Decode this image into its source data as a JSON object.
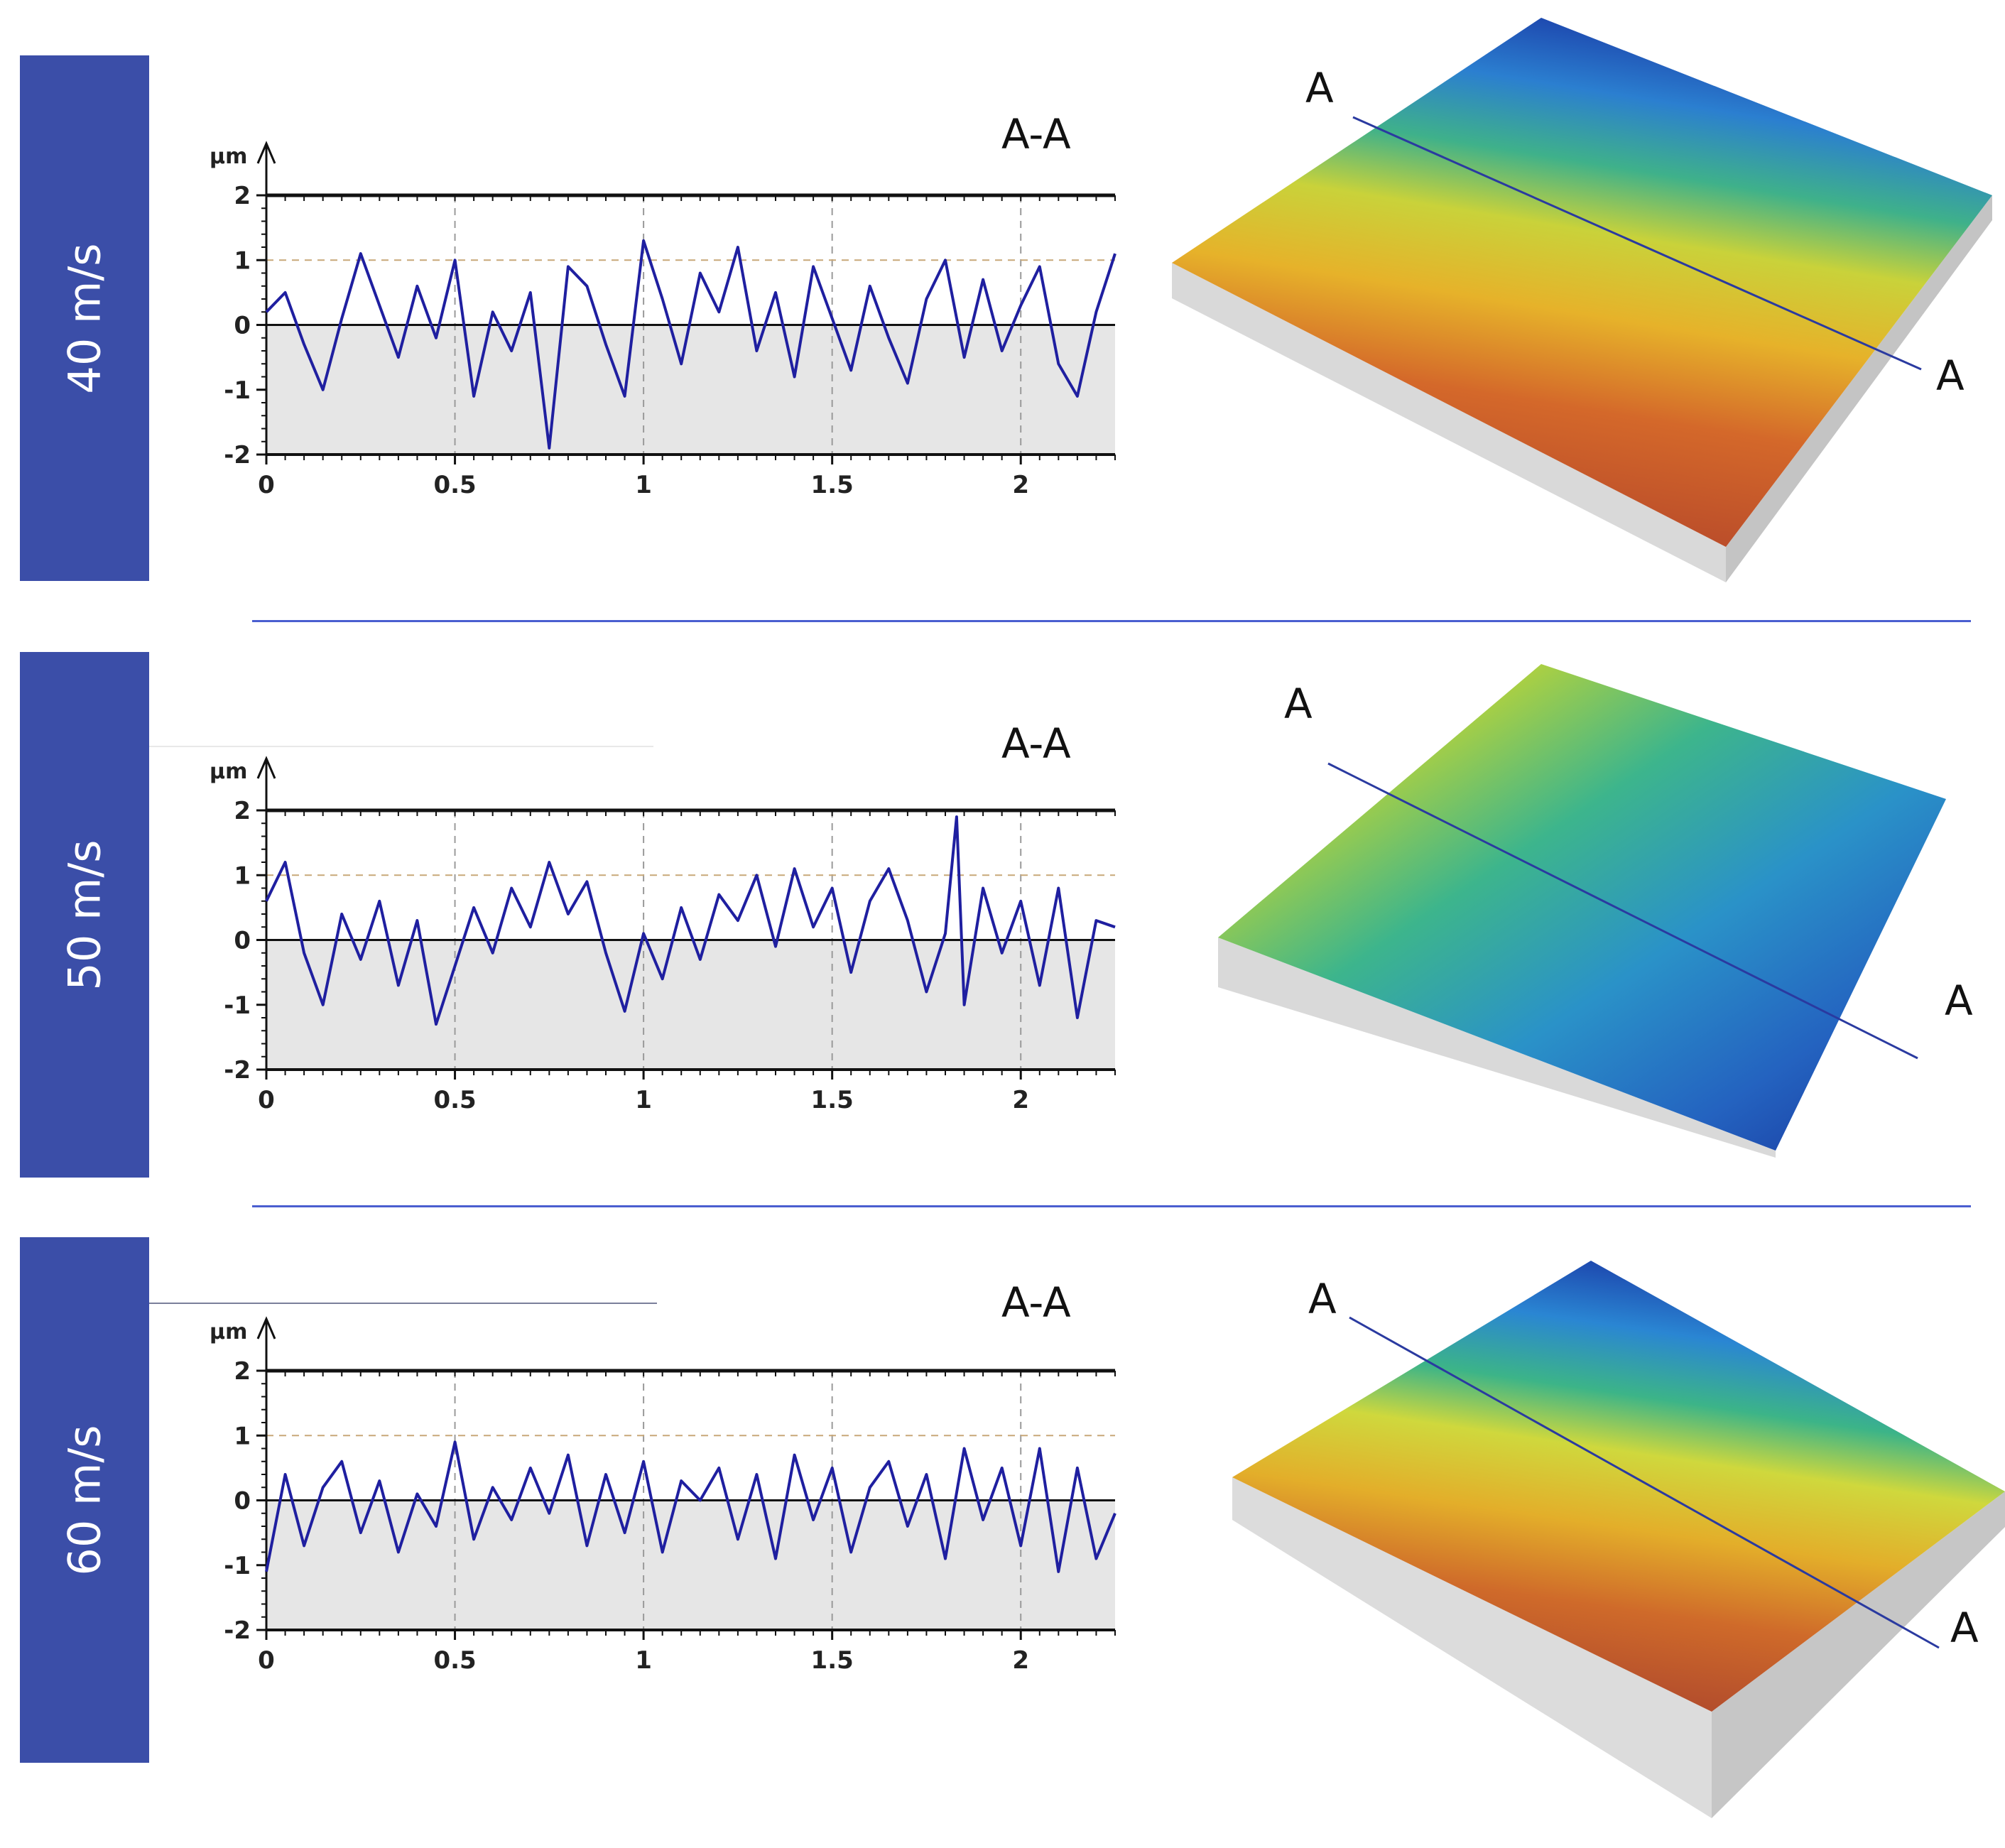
{
  "bands": [
    {
      "speed": "40 m/s",
      "section": "A-A",
      "marker_left": "A",
      "marker_right": "A"
    },
    {
      "speed": "50 m/s",
      "section": "A-A",
      "marker_left": "A",
      "marker_right": "A"
    },
    {
      "speed": "60 m/s",
      "section": "A-A",
      "marker_left": "A",
      "marker_right": "A"
    }
  ],
  "colors": {
    "tab": "#3b4ea8",
    "profile": "#1f1fa0",
    "divider": "#4a5ed0"
  },
  "chart_data": [
    {
      "type": "line",
      "title": "A-A",
      "ylabel": "µm",
      "xlabel": "",
      "ylim": [
        -2,
        2
      ],
      "xlim": [
        0,
        2.25
      ],
      "yticks": [
        "2",
        "1",
        "0",
        "-1",
        "-2"
      ],
      "xticks": [
        "0",
        "0.5",
        "1",
        "1.5",
        "2"
      ],
      "series": [
        {
          "name": "profile 40 m/s",
          "x": [
            0,
            0.05,
            0.1,
            0.15,
            0.2,
            0.25,
            0.3,
            0.35,
            0.4,
            0.45,
            0.5,
            0.55,
            0.6,
            0.65,
            0.7,
            0.75,
            0.8,
            0.85,
            0.9,
            0.95,
            1.0,
            1.05,
            1.1,
            1.15,
            1.2,
            1.25,
            1.3,
            1.35,
            1.4,
            1.45,
            1.5,
            1.55,
            1.6,
            1.65,
            1.7,
            1.75,
            1.8,
            1.85,
            1.9,
            1.95,
            2.0,
            2.05,
            2.1,
            2.15,
            2.2,
            2.25
          ],
          "values": [
            0.2,
            0.5,
            -0.3,
            -1.0,
            0.1,
            1.1,
            0.3,
            -0.5,
            0.6,
            -0.2,
            1.0,
            -1.1,
            0.2,
            -0.4,
            0.5,
            -1.9,
            0.9,
            0.6,
            -0.3,
            -1.1,
            1.3,
            0.4,
            -0.6,
            0.8,
            0.2,
            1.2,
            -0.4,
            0.5,
            -0.8,
            0.9,
            0.1,
            -0.7,
            0.6,
            -0.2,
            -0.9,
            0.4,
            1.0,
            -0.5,
            0.7,
            -0.4,
            0.3,
            0.9,
            -0.6,
            -1.1,
            0.2,
            1.1
          ]
        }
      ]
    },
    {
      "type": "line",
      "title": "A-A",
      "ylabel": "µm",
      "xlabel": "",
      "ylim": [
        -2,
        2
      ],
      "xlim": [
        0,
        2.25
      ],
      "yticks": [
        "2",
        "1",
        "0",
        "-1",
        "-2"
      ],
      "xticks": [
        "0",
        "0.5",
        "1",
        "1.5",
        "2"
      ],
      "series": [
        {
          "name": "profile 50 m/s",
          "x": [
            0,
            0.05,
            0.1,
            0.15,
            0.2,
            0.25,
            0.3,
            0.35,
            0.4,
            0.45,
            0.5,
            0.55,
            0.6,
            0.65,
            0.7,
            0.75,
            0.8,
            0.85,
            0.9,
            0.95,
            1.0,
            1.05,
            1.1,
            1.15,
            1.2,
            1.25,
            1.3,
            1.35,
            1.4,
            1.45,
            1.5,
            1.55,
            1.6,
            1.65,
            1.7,
            1.75,
            1.8,
            1.83,
            1.85,
            1.9,
            1.95,
            2.0,
            2.05,
            2.1,
            2.15,
            2.2,
            2.25
          ],
          "values": [
            0.6,
            1.2,
            -0.2,
            -1.0,
            0.4,
            -0.3,
            0.6,
            -0.7,
            0.3,
            -1.3,
            -0.4,
            0.5,
            -0.2,
            0.8,
            0.2,
            1.2,
            0.4,
            0.9,
            -0.2,
            -1.1,
            0.1,
            -0.6,
            0.5,
            -0.3,
            0.7,
            0.3,
            1.0,
            -0.1,
            1.1,
            0.2,
            0.8,
            -0.5,
            0.6,
            1.1,
            0.3,
            -0.8,
            0.1,
            1.9,
            -1.0,
            0.8,
            -0.2,
            0.6,
            -0.7,
            0.8,
            -1.2,
            0.3,
            0.2
          ]
        }
      ]
    },
    {
      "type": "line",
      "title": "A-A",
      "ylabel": "µm",
      "xlabel": "",
      "ylim": [
        -2,
        2
      ],
      "xlim": [
        0,
        2.25
      ],
      "yticks": [
        "2",
        "1",
        "0",
        "-1",
        "-2"
      ],
      "xticks": [
        "0",
        "0.5",
        "1",
        "1.5",
        "2"
      ],
      "series": [
        {
          "name": "profile 60 m/s",
          "x": [
            0,
            0.05,
            0.1,
            0.15,
            0.2,
            0.25,
            0.3,
            0.35,
            0.4,
            0.45,
            0.5,
            0.55,
            0.6,
            0.65,
            0.7,
            0.75,
            0.8,
            0.85,
            0.9,
            0.95,
            1.0,
            1.05,
            1.1,
            1.15,
            1.2,
            1.25,
            1.3,
            1.35,
            1.4,
            1.45,
            1.5,
            1.55,
            1.6,
            1.65,
            1.7,
            1.75,
            1.8,
            1.85,
            1.9,
            1.95,
            2.0,
            2.05,
            2.1,
            2.15,
            2.2,
            2.25
          ],
          "values": [
            -1.1,
            0.4,
            -0.7,
            0.2,
            0.6,
            -0.5,
            0.3,
            -0.8,
            0.1,
            -0.4,
            0.9,
            -0.6,
            0.2,
            -0.3,
            0.5,
            -0.2,
            0.7,
            -0.7,
            0.4,
            -0.5,
            0.6,
            -0.8,
            0.3,
            0.0,
            0.5,
            -0.6,
            0.4,
            -0.9,
            0.7,
            -0.3,
            0.5,
            -0.8,
            0.2,
            0.6,
            -0.4,
            0.4,
            -0.9,
            0.8,
            -0.3,
            0.5,
            -0.7,
            0.8,
            -1.1,
            0.5,
            -0.9,
            -0.2
          ]
        }
      ]
    }
  ]
}
